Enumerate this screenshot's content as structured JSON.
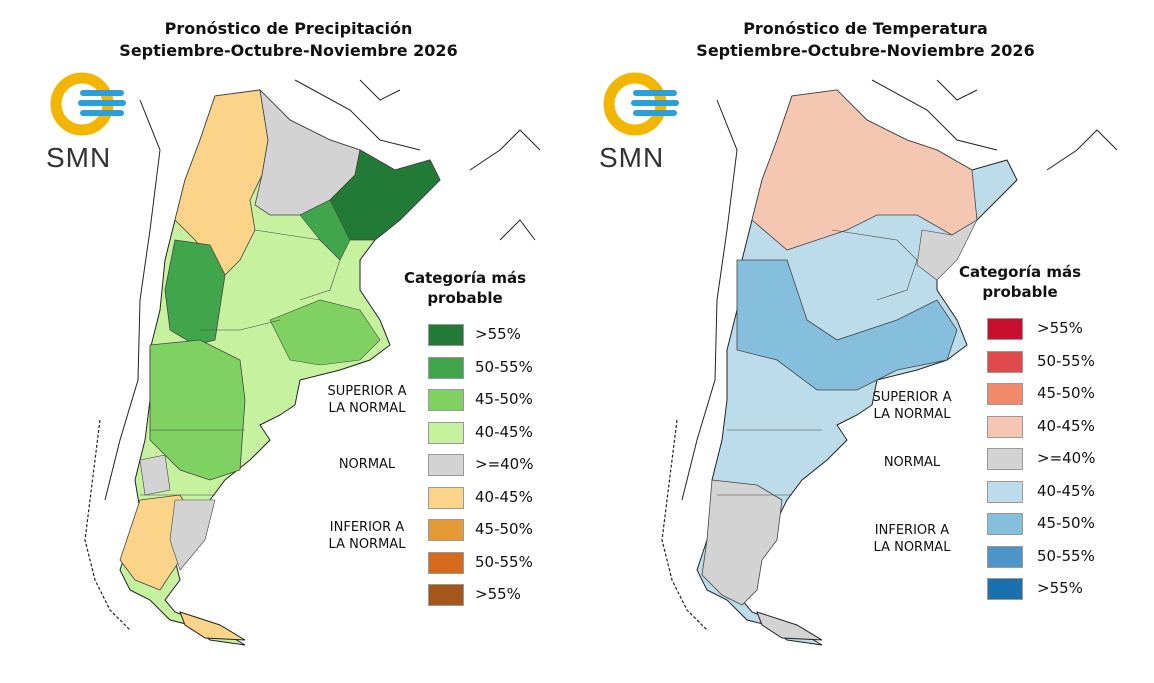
{
  "maps": [
    {
      "title_line1": "Pronóstico de Precipitación",
      "title_line2": "Septiembre-Octubre-Noviembre 2026",
      "logo_text": "SMN",
      "legend_title": "Categoría más probable",
      "groups": [
        "SUPERIOR A LA NORMAL",
        "NORMAL",
        "INFERIOR A LA NORMAL"
      ],
      "legend": [
        {
          "label": ">55%",
          "color": "#217a35"
        },
        {
          "label": "50-55%",
          "color": "#41a64b"
        },
        {
          "label": "45-50%",
          "color": "#7fd161"
        },
        {
          "label": "40-45%",
          "color": "#c6f2a0"
        },
        {
          "label": ">=40%",
          "color": "#d3d3d3"
        },
        {
          "label": "40-45%",
          "color": "#fbd48a"
        },
        {
          "label": "45-50%",
          "color": "#e59a38"
        },
        {
          "label": "50-55%",
          "color": "#d66a1c"
        },
        {
          "label": ">55%",
          "color": "#a5561a"
        }
      ]
    },
    {
      "title_line1": "Pronóstico de Temperatura",
      "title_line2": "Septiembre-Octubre-Noviembre 2026",
      "logo_text": "SMN",
      "legend_title": "Categoría más probable",
      "groups": [
        "SUPERIOR A LA NORMAL",
        "NORMAL",
        "INFERIOR A LA NORMAL"
      ],
      "legend": [
        {
          "label": ">55%",
          "color": "#c8102e"
        },
        {
          "label": "50-55%",
          "color": "#e04a4a"
        },
        {
          "label": "45-50%",
          "color": "#f08a6a"
        },
        {
          "label": "40-45%",
          "color": "#f5c6b2"
        },
        {
          "label": ">=40%",
          "color": "#d3d3d3"
        },
        {
          "label": "40-45%",
          "color": "#bcdcec"
        },
        {
          "label": "45-50%",
          "color": "#86bedd"
        },
        {
          "label": "50-55%",
          "color": "#4d95c8"
        },
        {
          "label": ">55%",
          "color": "#1a6faf"
        }
      ]
    }
  ]
}
